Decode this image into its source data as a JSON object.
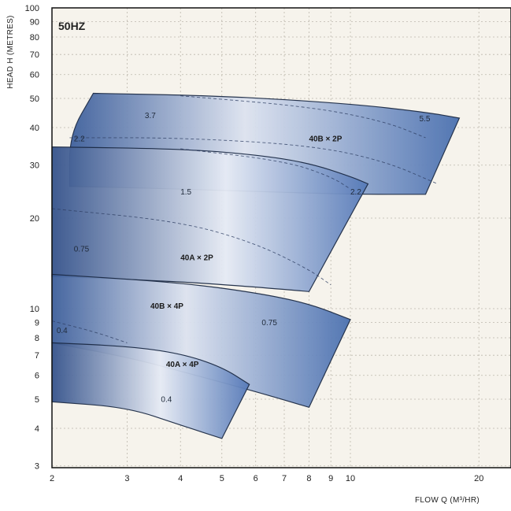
{
  "chart_data": {
    "type": "area",
    "frequency_label": "50HZ",
    "xlabel": "FLOW Q (M³/HR)",
    "ylabel": "HEAD H (METRES)",
    "x_scale": "log",
    "y_scale": "log",
    "xlim": [
      2,
      26
    ],
    "ylim": [
      3,
      100
    ],
    "x_ticks": [
      {
        "value": 2,
        "label": "2"
      },
      {
        "value": 3,
        "label": "3"
      },
      {
        "value": 4,
        "label": "4"
      },
      {
        "value": 5,
        "label": "5"
      },
      {
        "value": 6,
        "label": "6"
      },
      {
        "value": 7,
        "label": "7"
      },
      {
        "value": 8,
        "label": "8"
      },
      {
        "value": 9,
        "label": "9"
      },
      {
        "value": 10,
        "label": "10"
      },
      {
        "value": 20,
        "label": "20"
      }
    ],
    "y_ticks": [
      {
        "value": 3,
        "label": "3"
      },
      {
        "value": 4,
        "label": "4"
      },
      {
        "value": 5,
        "label": "5"
      },
      {
        "value": 6,
        "label": "6"
      },
      {
        "value": 7,
        "label": "7"
      },
      {
        "value": 8,
        "label": "8"
      },
      {
        "value": 9,
        "label": "9"
      },
      {
        "value": 10,
        "label": "10"
      },
      {
        "value": 20,
        "label": "20"
      },
      {
        "value": 30,
        "label": "30"
      },
      {
        "value": 40,
        "label": "40"
      },
      {
        "value": 50,
        "label": "50"
      },
      {
        "value": 60,
        "label": "60"
      },
      {
        "value": 70,
        "label": "70"
      },
      {
        "value": 80,
        "label": "80"
      },
      {
        "value": 90,
        "label": "90"
      },
      {
        "value": 100,
        "label": "100"
      }
    ],
    "grid": true,
    "series": [
      {
        "name": "40B × 2P",
        "top_curve": [
          [
            2.5,
            52
          ],
          [
            5,
            51
          ],
          [
            10,
            48
          ],
          [
            15,
            45
          ],
          [
            18,
            43
          ]
        ],
        "right_edge": [
          [
            18,
            43
          ],
          [
            15,
            24
          ]
        ],
        "bottom_curve": [
          [
            15,
            24
          ],
          [
            10,
            24
          ],
          [
            6,
            24.5
          ],
          [
            4,
            25
          ],
          [
            2.2,
            25.5
          ]
        ],
        "left_edge": [
          [
            2.2,
            25.5
          ],
          [
            2.2,
            38
          ],
          [
            2.5,
            52
          ]
        ],
        "power_labels": [
          {
            "text": "3.7",
            "q": 3.3,
            "h": 43
          },
          {
            "text": "5.5",
            "q": 14.5,
            "h": 42
          },
          {
            "text": "2.2",
            "q": 2.25,
            "h": 36
          }
        ],
        "dashed_curves": [
          [
            [
              2.2,
              37
            ],
            [
              4,
              37
            ],
            [
              8,
              35
            ],
            [
              12,
              31
            ],
            [
              16,
              26
            ]
          ],
          [
            [
              4,
              51
            ],
            [
              8,
              47
            ],
            [
              12,
              42
            ],
            [
              15,
              37
            ]
          ]
        ],
        "model_label_pos": {
          "q": 8,
          "h": 36
        }
      },
      {
        "name": "40A × 2P",
        "top_curve": [
          [
            2,
            34.5
          ],
          [
            4,
            34
          ],
          [
            6,
            32.5
          ],
          [
            8,
            30.5
          ],
          [
            10,
            27.5
          ],
          [
            11,
            26
          ]
        ],
        "right_edge": [
          [
            11,
            26
          ],
          [
            8,
            11.4
          ]
        ],
        "bottom_curve": [
          [
            8,
            11.4
          ],
          [
            6,
            11.8
          ],
          [
            4,
            12.3
          ],
          [
            2,
            12.8
          ]
        ],
        "left_edge": [
          [
            2,
            12.8
          ],
          [
            2,
            34.5
          ]
        ],
        "power_labels": [
          {
            "text": "1.5",
            "q": 4,
            "h": 24
          },
          {
            "text": "2.2",
            "q": 10,
            "h": 24
          },
          {
            "text": "0.75",
            "q": 2.25,
            "h": 15.5
          }
        ],
        "dashed_curves": [
          [
            [
              2,
              21.5
            ],
            [
              4,
              19.5
            ],
            [
              6,
              16.5
            ],
            [
              8,
              13.5
            ],
            [
              9,
              12
            ]
          ],
          [
            [
              4,
              34
            ],
            [
              7,
              31
            ],
            [
              9,
              27.5
            ],
            [
              10,
              25
            ]
          ]
        ],
        "model_label_pos": {
          "q": 4,
          "h": 14.5
        }
      },
      {
        "name": "40B × 4P",
        "top_curve": [
          [
            2,
            13
          ],
          [
            4,
            12.2
          ],
          [
            6,
            11.3
          ],
          [
            8,
            10.4
          ],
          [
            10,
            9.2
          ]
        ],
        "right_edge": [
          [
            10,
            9.2
          ],
          [
            8,
            4.7
          ]
        ],
        "bottom_curve": [
          [
            8,
            4.7
          ],
          [
            6,
            5.3
          ],
          [
            4,
            6.2
          ],
          [
            3,
            6.9
          ],
          [
            2,
            7.7
          ]
        ],
        "left_edge": [
          [
            2,
            7.7
          ],
          [
            2,
            13
          ]
        ],
        "power_labels": [
          {
            "text": "0.4",
            "q": 2.05,
            "h": 8.3
          },
          {
            "text": "0.75",
            "q": 6.2,
            "h": 8.8
          }
        ],
        "dashed_curves": [
          [
            [
              2,
              9.1
            ],
            [
              2.5,
              8.4
            ],
            [
              3,
              7.7
            ]
          ]
        ],
        "model_label_pos": {
          "q": 3.4,
          "h": 10
        }
      },
      {
        "name": "40A × 4P",
        "top_curve": [
          [
            2,
            7.7
          ],
          [
            3,
            7.5
          ],
          [
            4,
            7.1
          ],
          [
            5,
            6.4
          ],
          [
            5.8,
            5.6
          ]
        ],
        "right_edge": [
          [
            5.8,
            5.6
          ],
          [
            5,
            3.7
          ]
        ],
        "bottom_curve": [
          [
            5,
            3.7
          ],
          [
            4,
            4.1
          ],
          [
            3,
            4.7
          ],
          [
            2,
            4.9
          ]
        ],
        "left_edge": [
          [
            2,
            4.9
          ],
          [
            2,
            7.7
          ]
        ],
        "power_labels": [
          {
            "text": "0.4",
            "q": 3.6,
            "h": 4.9
          }
        ],
        "dashed_curves": [],
        "model_label_pos": {
          "q": 3.7,
          "h": 6.4
        }
      }
    ]
  }
}
